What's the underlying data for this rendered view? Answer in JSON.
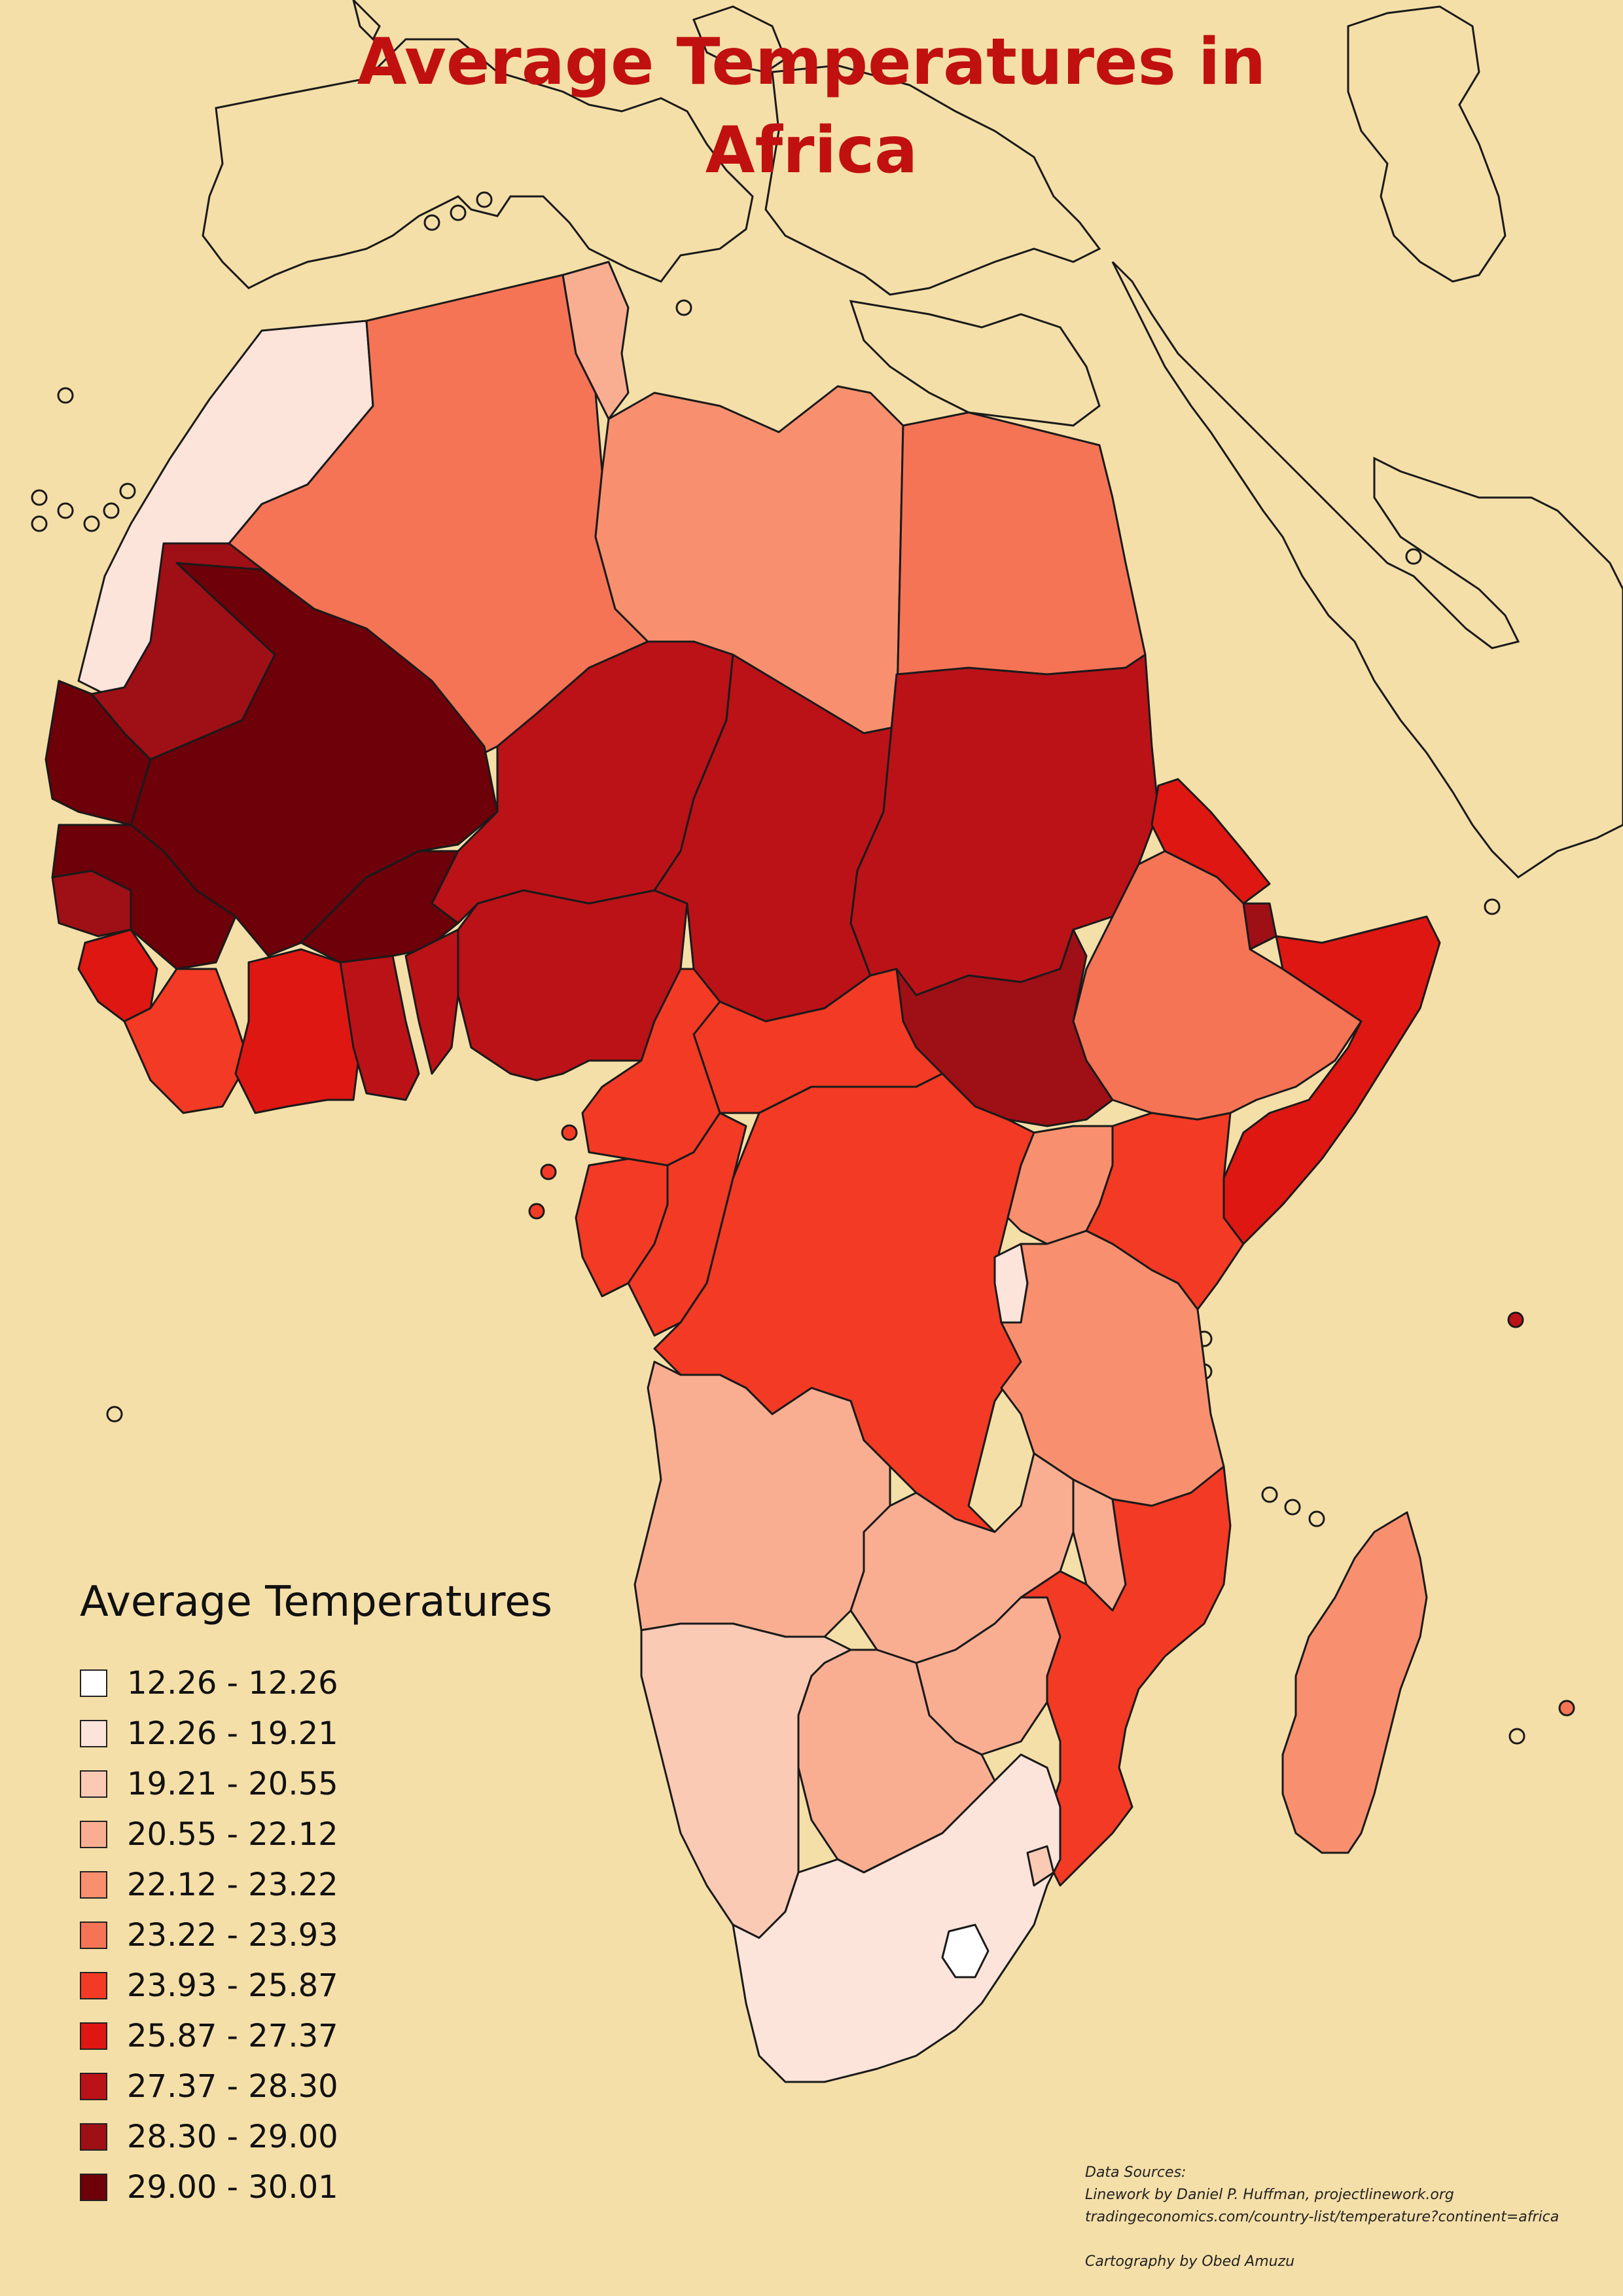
{
  "title": {
    "line1": "Average Temperatures in",
    "line2": "Africa"
  },
  "legend": {
    "title": "Average Temperatures",
    "items": [
      {
        "label": "12.26 - 12.26",
        "color": "#ffffff"
      },
      {
        "label": "12.26 - 19.21",
        "color": "#fce4da"
      },
      {
        "label": "19.21 - 20.55",
        "color": "#fbcab4"
      },
      {
        "label": "20.55 - 22.12",
        "color": "#f9ae92"
      },
      {
        "label": "22.12 - 23.22",
        "color": "#f8906f"
      },
      {
        "label": "23.22 - 23.93",
        "color": "#f57456"
      },
      {
        "label": "23.93 - 25.87",
        "color": "#f33a25"
      },
      {
        "label": "25.87 - 27.37",
        "color": "#de1713"
      },
      {
        "label": "27.37 - 28.30",
        "color": "#bb1218"
      },
      {
        "label": "28.30 - 29.00",
        "color": "#9f0f16"
      },
      {
        "label": "29.00 - 30.01",
        "color": "#6d0009"
      }
    ]
  },
  "credits": {
    "heading": "Data Sources:",
    "line1": "Linework by Daniel P. Huffman, projectlinework.org",
    "line2": "tradingeconomics.com/country-list/temperature?continent=africa",
    "cartography": "Cartography by Obed Amuzu"
  },
  "map": {
    "background_color": "#f5dfa8",
    "outline_color": "#1a1a1a"
  }
}
